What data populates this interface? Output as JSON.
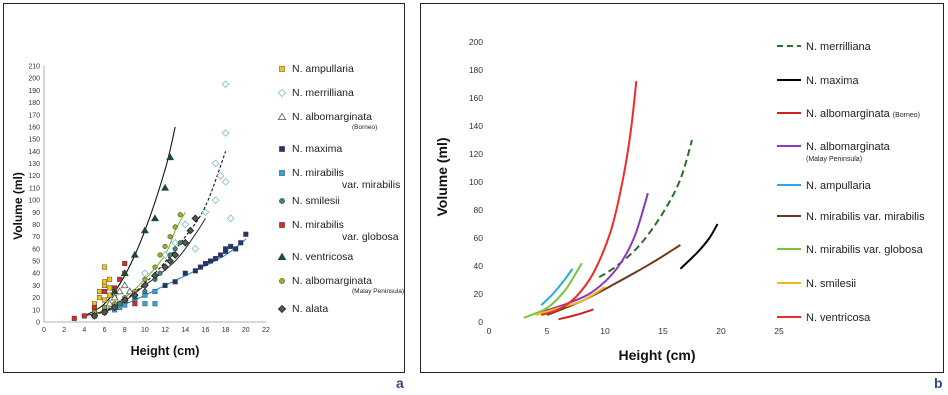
{
  "panel_labels": {
    "a": "a",
    "b": "b"
  },
  "chart_data": [
    {
      "panel": "a",
      "type": "scatter",
      "title": "",
      "xlabel": "Height (cm)",
      "ylabel": "Volume (ml)",
      "xlim": [
        0,
        22
      ],
      "ylim": [
        0,
        210
      ],
      "x_ticks": [
        0,
        2,
        4,
        6,
        8,
        10,
        12,
        14,
        16,
        18,
        20,
        22
      ],
      "y_ticks": [
        0,
        10,
        20,
        30,
        40,
        50,
        60,
        70,
        80,
        90,
        100,
        110,
        120,
        130,
        140,
        150,
        160,
        170,
        180,
        190,
        200,
        210
      ],
      "grid": false,
      "legend_position": "right",
      "series": [
        {
          "name": "N. ampullaria",
          "marker": "square",
          "color": "#f2c318",
          "points": [
            [
              5,
              10
            ],
            [
              5,
              15
            ],
            [
              5.5,
              20
            ],
            [
              5.5,
              25
            ],
            [
              6,
              18
            ],
            [
              6,
              30
            ],
            [
              6,
              33
            ],
            [
              6,
              45
            ],
            [
              6.5,
              22
            ],
            [
              6.5,
              28
            ],
            [
              6.5,
              35
            ],
            [
              7,
              12
            ],
            [
              7,
              20
            ],
            [
              7,
              25
            ],
            [
              7.5,
              15
            ]
          ]
        },
        {
          "name": "N. merrilliana",
          "marker": "diamond-open",
          "color": "#7fb7cc",
          "points": [
            [
              10,
              40
            ],
            [
              12,
              55
            ],
            [
              13,
              65
            ],
            [
              14,
              80
            ],
            [
              15,
              60
            ],
            [
              16,
              90
            ],
            [
              17,
              130
            ],
            [
              17,
              100
            ],
            [
              17.5,
              120
            ],
            [
              18,
              155
            ],
            [
              18,
              195
            ],
            [
              18,
              115
            ],
            [
              18.5,
              85
            ]
          ]
        },
        {
          "name": "N. albomarginata",
          "sublabel": "(Borneo)",
          "marker": "triangle-open",
          "color": "#555555",
          "points": [
            [
              6.5,
              15
            ],
            [
              7,
              20
            ],
            [
              7.5,
              25
            ],
            [
              8,
              18
            ],
            [
              8,
              30
            ],
            [
              8.5,
              25
            ]
          ]
        },
        {
          "name": "N. maxima",
          "marker": "square",
          "color": "#27336e",
          "points": [
            [
              11,
              25
            ],
            [
              12,
              30
            ],
            [
              13,
              33
            ],
            [
              14,
              40
            ],
            [
              15,
              42
            ],
            [
              15.5,
              45
            ],
            [
              16,
              48
            ],
            [
              16.5,
              50
            ],
            [
              17,
              52
            ],
            [
              17.5,
              55
            ],
            [
              18,
              58
            ],
            [
              18,
              60
            ],
            [
              18.5,
              62
            ],
            [
              19,
              60
            ],
            [
              19.5,
              65
            ],
            [
              20,
              72
            ]
          ]
        },
        {
          "name": "N. mirabilis",
          "sublabel": "var. mirabilis",
          "marker": "square",
          "color": "#3aa0d8",
          "points": [
            [
              5,
              5
            ],
            [
              6,
              8
            ],
            [
              7,
              10
            ],
            [
              7.5,
              12
            ],
            [
              8,
              14
            ],
            [
              9,
              18
            ],
            [
              10,
              15
            ],
            [
              10,
              22
            ],
            [
              11,
              25
            ],
            [
              11,
              15
            ]
          ]
        },
        {
          "name": "N. smilesii",
          "marker": "circle",
          "color": "#3a8a7a",
          "points": [
            [
              4,
              5
            ],
            [
              5,
              7
            ],
            [
              6,
              10
            ],
            [
              7,
              12
            ],
            [
              7.5,
              15
            ],
            [
              8,
              18
            ],
            [
              9,
              20
            ],
            [
              10,
              25
            ],
            [
              11,
              35
            ],
            [
              11.5,
              40
            ],
            [
              12,
              45
            ],
            [
              12.5,
              55
            ],
            [
              13,
              60
            ],
            [
              13.5,
              65
            ]
          ]
        },
        {
          "name": "N. mirabilis",
          "sublabel": "var. globosa",
          "marker": "square",
          "color": "#d22b2b",
          "points": [
            [
              3,
              3
            ],
            [
              4,
              5
            ],
            [
              5,
              12
            ],
            [
              6,
              25
            ],
            [
              7,
              28
            ],
            [
              7.5,
              35
            ],
            [
              8,
              40
            ],
            [
              8,
              48
            ],
            [
              9,
              15
            ]
          ]
        },
        {
          "name": "N. ventricosa",
          "marker": "triangle",
          "color": "#1e4a30",
          "points": [
            [
              6,
              10
            ],
            [
              7,
              25
            ],
            [
              8,
              40
            ],
            [
              9,
              55
            ],
            [
              10,
              75
            ],
            [
              11,
              85
            ],
            [
              12,
              110
            ],
            [
              12.5,
              135
            ]
          ]
        },
        {
          "name": "N. albomarginata",
          "sublabel": "(Malay Peninsula)",
          "marker": "circle",
          "color": "#9ab02a",
          "points": [
            [
              5,
              8
            ],
            [
              6,
              12
            ],
            [
              7,
              15
            ],
            [
              8,
              20
            ],
            [
              9,
              25
            ],
            [
              10,
              35
            ],
            [
              11,
              45
            ],
            [
              11.5,
              55
            ],
            [
              12,
              62
            ],
            [
              12.5,
              70
            ],
            [
              13,
              78
            ],
            [
              13.5,
              88
            ]
          ]
        },
        {
          "name": "N. alata",
          "marker": "diamond",
          "color": "#555555",
          "points": [
            [
              5,
              5
            ],
            [
              6,
              8
            ],
            [
              7,
              12
            ],
            [
              8,
              18
            ],
            [
              9,
              22
            ],
            [
              10,
              30
            ],
            [
              11,
              38
            ],
            [
              12,
              45
            ],
            [
              12.5,
              50
            ],
            [
              13,
              55
            ],
            [
              14,
              65
            ],
            [
              14.5,
              75
            ],
            [
              15,
              85
            ]
          ]
        }
      ],
      "fit_curves": [
        {
          "color": "#111111",
          "style": "solid",
          "points": [
            [
              4,
              5
            ],
            [
              6,
              15
            ],
            [
              8,
              38
            ],
            [
              10,
              75
            ],
            [
              12,
              125
            ],
            [
              13,
              160
            ]
          ]
        },
        {
          "color": "#111111",
          "style": "dashed",
          "points": [
            [
              5,
              5
            ],
            [
              8,
              18
            ],
            [
              11,
              40
            ],
            [
              14,
              70
            ],
            [
              16,
              95
            ],
            [
              18,
              140
            ]
          ]
        },
        {
          "color": "#2a8ad8",
          "style": "solid",
          "points": [
            [
              6,
              8
            ],
            [
              9,
              18
            ],
            [
              12,
              30
            ],
            [
              15,
              42
            ],
            [
              18,
              55
            ],
            [
              20,
              68
            ]
          ]
        },
        {
          "color": "#7ab82a",
          "style": "solid",
          "points": [
            [
              5,
              5
            ],
            [
              8,
              20
            ],
            [
              10,
              35
            ],
            [
              12,
              55
            ],
            [
              13,
              75
            ],
            [
              14,
              90
            ]
          ]
        },
        {
          "color": "#333333",
          "style": "solid",
          "points": [
            [
              4,
              5
            ],
            [
              7,
              12
            ],
            [
              10,
              30
            ],
            [
              13,
              50
            ],
            [
              15,
              72
            ],
            [
              16,
              85
            ]
          ]
        }
      ]
    },
    {
      "panel": "b",
      "type": "line",
      "title": "",
      "xlabel": "Height (cm)",
      "ylabel": "Volume (ml)",
      "xlim": [
        0,
        25
      ],
      "ylim": [
        0,
        200
      ],
      "x_ticks": [
        0,
        5,
        10,
        15,
        20,
        25
      ],
      "y_ticks": [
        0,
        20,
        40,
        60,
        80,
        100,
        120,
        140,
        160,
        180,
        200
      ],
      "grid": false,
      "legend_position": "right",
      "series": [
        {
          "name": "N. merrilliana",
          "color": "#2e6b2e",
          "style": "dashed",
          "points": [
            [
              9.5,
              32
            ],
            [
              11,
              40
            ],
            [
              13,
              55
            ],
            [
              15,
              78
            ],
            [
              16.5,
              102
            ],
            [
              17.5,
              130
            ]
          ]
        },
        {
          "name": "N. maxima",
          "color": "#000000",
          "style": "solid",
          "points": [
            [
              16.5,
              38
            ],
            [
              18,
              50
            ],
            [
              19,
              60
            ],
            [
              19.7,
              70
            ]
          ]
        },
        {
          "name": "N. albomarginata",
          "sublabel": "(Borneo)",
          "color": "#cc2222",
          "style": "solid",
          "points": [
            [
              6,
              2
            ],
            [
              7.5,
              5
            ],
            [
              9,
              9
            ]
          ]
        },
        {
          "name": "N. albomarginata",
          "sublabel": "(Malay Peninsula)",
          "color": "#8a3ab8",
          "style": "solid",
          "points": [
            [
              4.5,
              7
            ],
            [
              7,
              14
            ],
            [
              9,
              22
            ],
            [
              11,
              38
            ],
            [
              12.5,
              60
            ],
            [
              13.7,
              92
            ]
          ]
        },
        {
          "name": "N. ampullaria",
          "color": "#29a8e0",
          "style": "solid",
          "points": [
            [
              4.5,
              12
            ],
            [
              5.5,
              20
            ],
            [
              6.5,
              30
            ],
            [
              7.2,
              38
            ]
          ]
        },
        {
          "name": "N. mirabilis var. mirabilis",
          "color": "#6b3a1e",
          "style": "solid",
          "points": [
            [
              5,
              5
            ],
            [
              8,
              15
            ],
            [
              11,
              28
            ],
            [
              14,
              42
            ],
            [
              16.5,
              55
            ]
          ]
        },
        {
          "name": "N. mirabilis var. globosa",
          "color": "#7ac43a",
          "style": "solid",
          "points": [
            [
              3,
              3
            ],
            [
              5,
              10
            ],
            [
              6.5,
              22
            ],
            [
              7.5,
              35
            ],
            [
              8,
              42
            ]
          ]
        },
        {
          "name": "N. smilesii",
          "color": "#f2b818",
          "style": "solid",
          "points": [
            [
              4,
              5
            ],
            [
              6,
              10
            ],
            [
              8,
              15
            ],
            [
              10,
              25
            ]
          ]
        },
        {
          "name": "N. ventricosa",
          "color": "#ee2a2a",
          "style": "solid",
          "points": [
            [
              4.5,
              5
            ],
            [
              6,
              9
            ],
            [
              7.5,
              18
            ],
            [
              9,
              35
            ],
            [
              10.5,
              65
            ],
            [
              11.5,
              100
            ],
            [
              12.2,
              135
            ],
            [
              12.7,
              172
            ]
          ]
        }
      ]
    }
  ]
}
